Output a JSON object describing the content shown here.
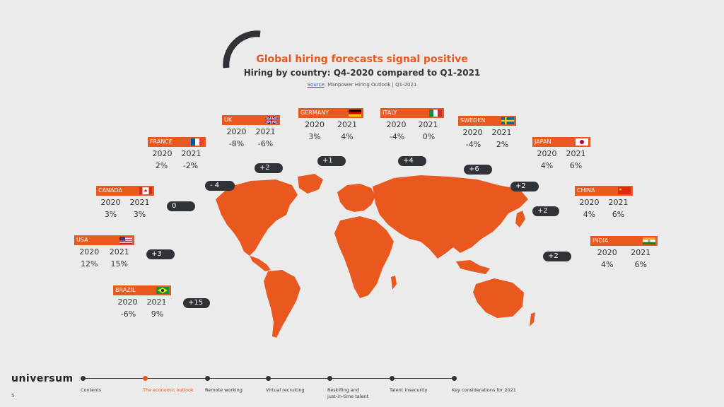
{
  "header": {
    "title": "Global hiring forecasts signal positive",
    "subtitle": "Hiring by country: Q4-2020 compared to Q1-2021",
    "source_link": "Source",
    "source_text": ": Manpower Hiring Outlook | Q1-2021"
  },
  "countries": [
    {
      "name": "UK",
      "y2020": "2020",
      "y2021": "2021",
      "v2020": "-8%",
      "v2021": "-6%",
      "change": "+2"
    },
    {
      "name": "GERMANY",
      "y2020": "2020",
      "y2021": "2021",
      "v2020": "3%",
      "v2021": "4%",
      "change": "+1"
    },
    {
      "name": "ITALY",
      "y2020": "2020",
      "y2021": "2021",
      "v2020": "-4%",
      "v2021": "0%",
      "change": "+4"
    },
    {
      "name": "SWEDEN",
      "y2020": "2020",
      "y2021": "2021",
      "v2020": "-4%",
      "v2021": "2%",
      "change": "+6"
    },
    {
      "name": "FRANCE",
      "y2020": "2020",
      "y2021": "2021",
      "v2020": "2%",
      "v2021": "-2%",
      "change": "- 4"
    },
    {
      "name": "JAPAN",
      "y2020": "2020",
      "y2021": "2021",
      "v2020": "4%",
      "v2021": "6%",
      "change": "+2"
    },
    {
      "name": "CANADA",
      "y2020": "2020",
      "y2021": "2021",
      "v2020": "3%",
      "v2021": "3%",
      "change": "0"
    },
    {
      "name": "CHINA",
      "y2020": "2020",
      "y2021": "2021",
      "v2020": "4%",
      "v2021": "6%",
      "change": "+2"
    },
    {
      "name": "USA",
      "y2020": "2020",
      "y2021": "2021",
      "v2020": "12%",
      "v2021": "15%",
      "change": "+3"
    },
    {
      "name": "INDIA",
      "y2020": "2020",
      "y2021": "2021",
      "v2020": "4%",
      "v2021": "6%",
      "change": "+2"
    },
    {
      "name": "BRAZIL",
      "y2020": "2020",
      "y2021": "2021",
      "v2020": "-6%",
      "v2021": "9%",
      "change": "+15"
    }
  ],
  "footer": {
    "logo": "universum",
    "page_number": "5",
    "nav": [
      {
        "label": "Contents"
      },
      {
        "label": "The economic outlook"
      },
      {
        "label": "Remote working"
      },
      {
        "label": "Virtual recruiting"
      },
      {
        "label": "Reskilling and",
        "label2": "just-in-time talent"
      },
      {
        "label": "Talent insecurity"
      },
      {
        "label": "Key considerations for 2021"
      }
    ]
  },
  "colors": {
    "accent": "#e8581f",
    "pill": "#2f3337",
    "background": "#ebebeb"
  }
}
